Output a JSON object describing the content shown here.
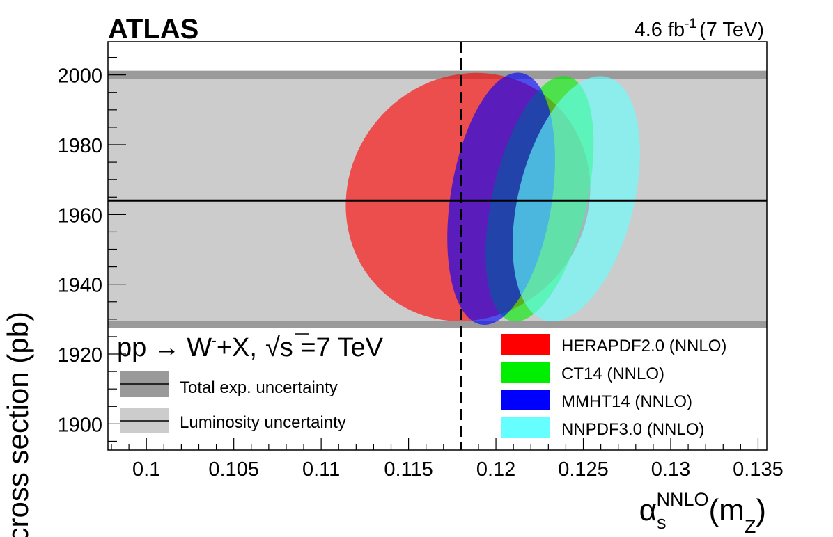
{
  "experiment": "ATLAS",
  "lumi": {
    "value": "4.6 fb",
    "exponent": "-1",
    "energy": "(7 TeV)"
  },
  "process": {
    "lhs": "pp",
    "arrow": "→",
    "boson": "W",
    "charge": "-",
    "rest": "+X,",
    "sqrt": "√",
    "s_label": "s =7 TeV"
  },
  "colors": {
    "lumi_band": "#cccccc",
    "total_band": "#9a9a9a",
    "herapdf": "#ff0000",
    "ct14": "#00ee00",
    "mmht14": "#0000ff",
    "nnpdf": "#66ffff"
  },
  "chart_data": {
    "type": "scatter",
    "title": "",
    "xlabel": {
      "main": "α",
      "sub": "s",
      "sup": "NNLO",
      "arg": "(m",
      "arg_sub": "Z",
      "close": ")"
    },
    "ylabel": "cross section (pb)",
    "xlim": [
      0.0978,
      0.1355
    ],
    "ylim": [
      1892.5,
      2009.5
    ],
    "x_ticks": [
      0.1,
      0.105,
      0.11,
      0.115,
      0.12,
      0.125,
      0.13,
      0.135
    ],
    "x_tick_labels": [
      "0.1",
      "0.105",
      "0.11",
      "0.115",
      "0.12",
      "0.125",
      "0.13",
      "0.135"
    ],
    "y_ticks": [
      1900,
      1920,
      1940,
      1960,
      1980,
      2000
    ],
    "y_tick_labels": [
      "1900",
      "1920",
      "1940",
      "1960",
      "1980",
      "2000"
    ],
    "measurement": 1964,
    "luminosity_band": [
      1928.5,
      1999.5
    ],
    "total_band_edges": [
      [
        1927.5,
        1929.5
      ],
      [
        1998.8,
        2001.2
      ]
    ],
    "reference_alphas": 0.118,
    "ellipses": [
      {
        "name": "HERAPDF2.0 (NNLO)",
        "key": "herapdf",
        "color": "#ff0000",
        "cx": 0.1184,
        "cy": 1965,
        "semi_x": 0.0068,
        "semi_y": 36.5,
        "angle": 38
      },
      {
        "name": "CT14 (NNLO)",
        "key": "ct14",
        "color": "#00ee00",
        "cx": 0.1225,
        "cy": 1964.5,
        "semi_x": 0.0027,
        "semi_y": 36,
        "angle": 13
      },
      {
        "name": "MMHT14 (NNLO)",
        "key": "mmht14",
        "color": "#0000ff",
        "cx": 0.1203,
        "cy": 1964.5,
        "semi_x": 0.0029,
        "semi_y": 36.5,
        "angle": 9
      },
      {
        "name": "NNPDF3.0 (NNLO)",
        "key": "nnpdf",
        "color": "#66ffff",
        "cx": 0.1246,
        "cy": 1964.5,
        "semi_x": 0.0033,
        "semi_y": 36,
        "angle": 14
      }
    ],
    "legend_left": [
      {
        "label": "Total exp. uncertainty",
        "key": "total"
      },
      {
        "label": "Luminosity uncertainty",
        "key": "lumi"
      }
    ],
    "legend_right": [
      "HERAPDF2.0 (NNLO)",
      "CT14 (NNLO)",
      "MMHT14 (NNLO)",
      "NNPDF3.0 (NNLO)"
    ]
  }
}
